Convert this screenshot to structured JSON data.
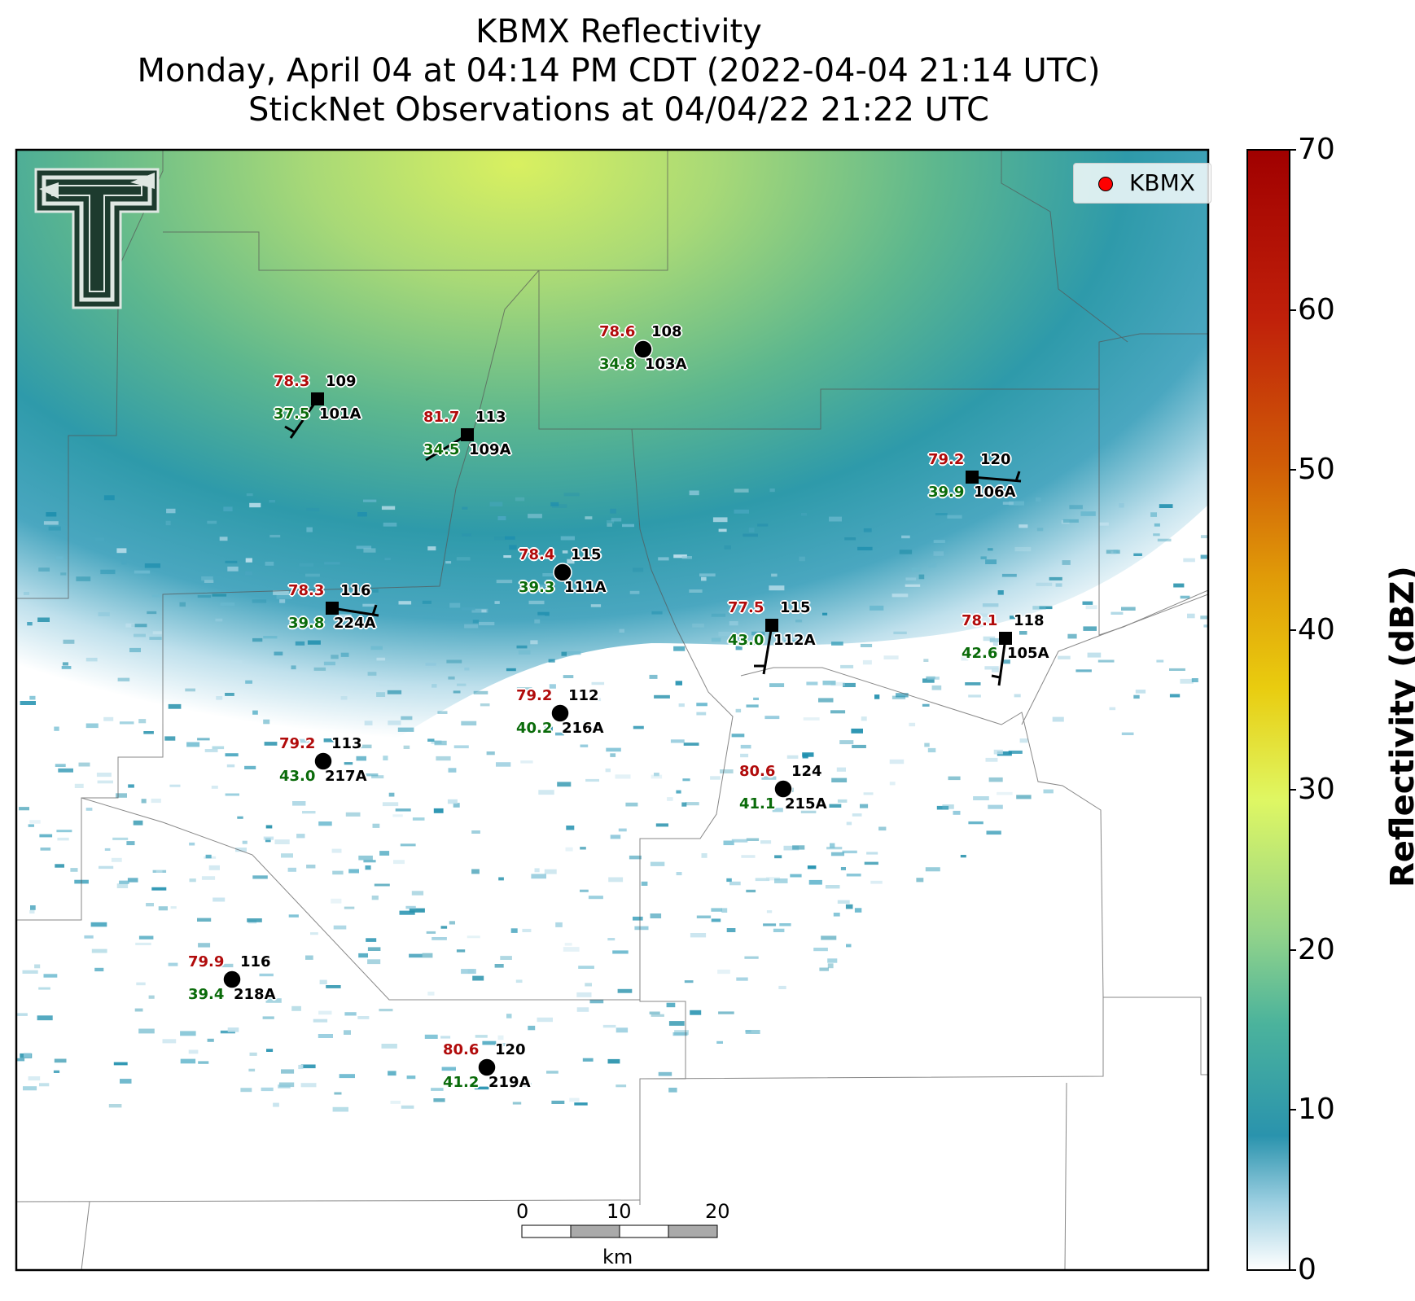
{
  "title": {
    "line1": "KBMX Reflectivity",
    "line2": "Monday, April 04 at 04:14 PM CDT (2022-04-04 21:14 UTC)",
    "line3": "StickNet Observations at 04/04/22 21:22 UTC"
  },
  "colorbar": {
    "label": "Reflectivity (dBZ)",
    "ticks": [
      "0",
      "10",
      "20",
      "30",
      "40",
      "50",
      "60",
      "70"
    ],
    "range": [
      0,
      70
    ],
    "colors": [
      "#ffffff",
      "#1f8fae",
      "#9ad88c",
      "#dbf563",
      "#e8c50a",
      "#d06a06",
      "#c21a0a",
      "#a00000"
    ]
  },
  "legend": {
    "label": "KBMX",
    "marker_color": "#ff0000"
  },
  "logo": {
    "name": "texas-tech-double-t-logo"
  },
  "scalebar": {
    "ticks": [
      "0",
      "10",
      "20"
    ],
    "unit": "km"
  },
  "stations": [
    {
      "id": "101A",
      "temp": "78.3",
      "dew": "37.5",
      "elev": "109",
      "marker": "square"
    },
    {
      "id": "109A",
      "temp": "81.7",
      "dew": "34.5",
      "elev": "113",
      "marker": "square"
    },
    {
      "id": "103A",
      "temp": "78.6",
      "dew": "34.8",
      "elev": "108",
      "marker": "circle"
    },
    {
      "id": "106A",
      "temp": "79.2",
      "dew": "39.9",
      "elev": "120",
      "marker": "square"
    },
    {
      "id": "111A",
      "temp": "78.4",
      "dew": "39.3",
      "elev": "115",
      "marker": "circle"
    },
    {
      "id": "224A",
      "temp": "78.3",
      "dew": "39.8",
      "elev": "116",
      "marker": "square"
    },
    {
      "id": "112A",
      "temp": "77.5",
      "dew": "43.0",
      "elev": "115",
      "marker": "square"
    },
    {
      "id": "105A",
      "temp": "78.1",
      "dew": "42.6",
      "elev": "118",
      "marker": "square"
    },
    {
      "id": "216A",
      "temp": "79.2",
      "dew": "40.2",
      "elev": "112",
      "marker": "circle"
    },
    {
      "id": "217A",
      "temp": "79.2",
      "dew": "43.0",
      "elev": "113",
      "marker": "circle"
    },
    {
      "id": "215A",
      "temp": "80.6",
      "dew": "41.1",
      "elev": "124",
      "marker": "circle"
    },
    {
      "id": "218A",
      "temp": "79.9",
      "dew": "39.4",
      "elev": "116",
      "marker": "circle"
    },
    {
      "id": "219A",
      "temp": "80.6",
      "dew": "41.2",
      "elev": "120",
      "marker": "circle"
    }
  ]
}
